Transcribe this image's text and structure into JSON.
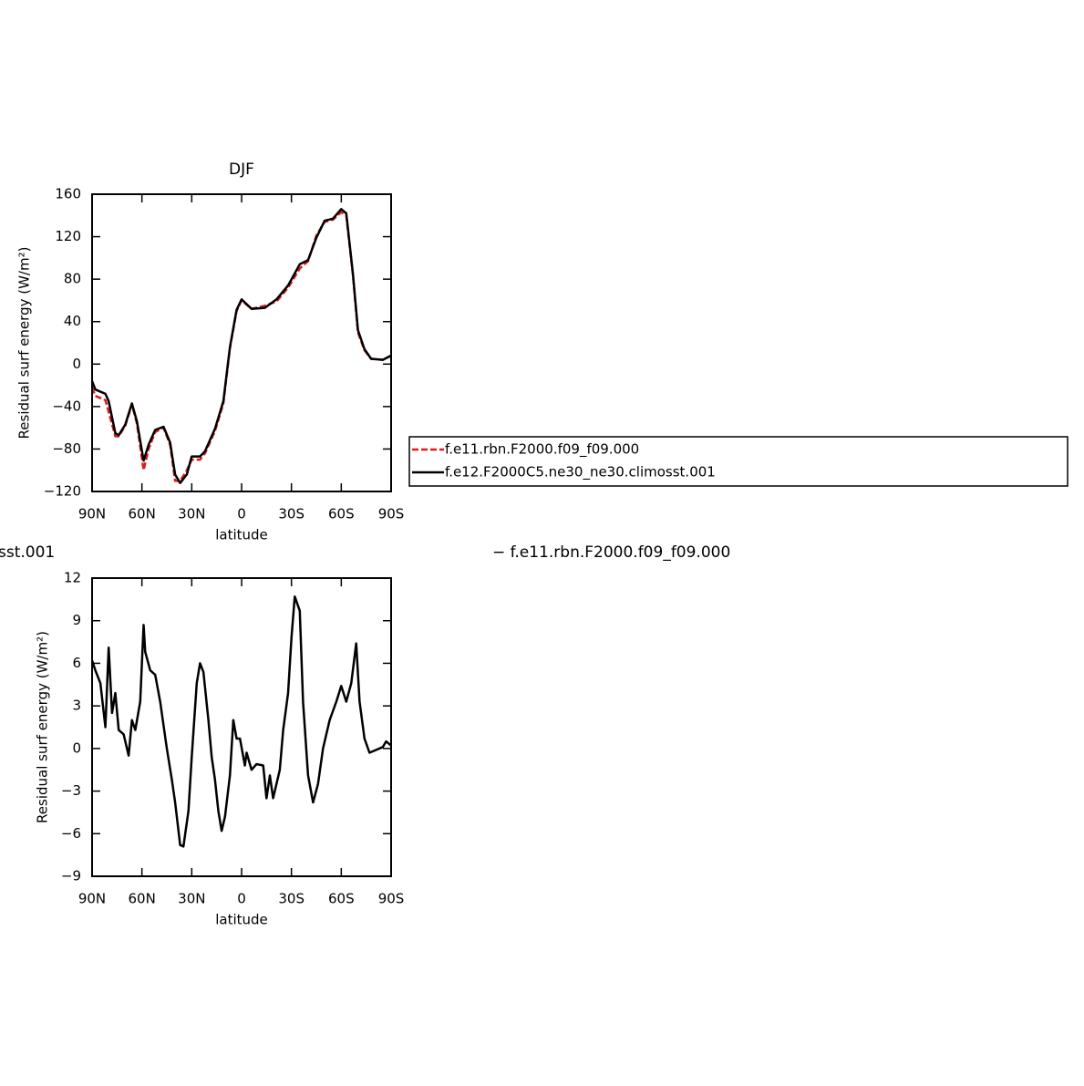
{
  "chart_data": [
    {
      "type": "line",
      "title": "DJF",
      "xlabel": "latitude",
      "ylabel": "Residual surf energy (W/m²)",
      "xlim": [
        90,
        -90
      ],
      "xticks": [
        {
          "value": 90,
          "label": "90N"
        },
        {
          "value": 60,
          "label": "60N"
        },
        {
          "value": 30,
          "label": "30N"
        },
        0,
        {
          "value": -30,
          "label": "30S"
        },
        {
          "value": -60,
          "label": "60S"
        },
        {
          "value": -90,
          "label": "90S"
        }
      ],
      "ylim": [
        -120,
        160
      ],
      "yticks": [
        {
          "value": -120,
          "label": "−120"
        },
        {
          "value": -80,
          "label": "−80"
        },
        {
          "value": -40,
          "label": "−40"
        },
        0,
        40,
        80,
        120,
        160
      ],
      "legend": "right",
      "x": [
        90,
        88,
        82,
        80,
        76,
        74,
        70,
        66,
        63,
        59,
        56,
        52,
        47,
        43,
        40,
        37,
        33,
        30,
        25,
        22,
        16,
        11,
        7,
        3,
        0,
        -6,
        -14,
        -21,
        -28,
        -35,
        -40,
        -45,
        -50,
        -55,
        -60,
        -63,
        -67,
        -70,
        -74,
        -78,
        -85,
        -90
      ],
      "series": [
        {
          "name": "f.e11.rbn.F2000.f09_f09.000",
          "color": "#e31a1c",
          "dashed": true,
          "values": [
            -22,
            -30,
            -34,
            -45,
            -68,
            -68,
            -58,
            -38,
            -56,
            -100,
            -80,
            -64,
            -60,
            -76,
            -110,
            -110,
            -100,
            -90,
            -90,
            -84,
            -63,
            -37,
            15,
            50,
            60,
            52,
            55,
            59,
            72,
            90,
            97,
            121,
            134,
            136,
            143,
            140,
            84,
            30,
            13,
            5,
            4,
            8
          ]
        },
        {
          "name": "f.e12.F2000C5.ne30_ne30.climosst.001",
          "color": "#000000",
          "dashed": false,
          "values": [
            -16,
            -24,
            -28,
            -35,
            -65,
            -67,
            -57,
            -37,
            -54,
            -91,
            -76,
            -62,
            -59,
            -74,
            -104,
            -112,
            -104,
            -87,
            -87,
            -82,
            -61,
            -35,
            16,
            51,
            61,
            52,
            53,
            61,
            74,
            94,
            98,
            119,
            135,
            137,
            146,
            142,
            85,
            32,
            14,
            5,
            4,
            8
          ]
        }
      ]
    },
    {
      "type": "line",
      "xlabel": "latitude",
      "ylabel": "Residual surf energy (W/m²)",
      "annotations": [
        "sst.001",
        "− f.e11.rbn.F2000.f09_f09.000"
      ],
      "xlim": [
        90,
        -90
      ],
      "xticks": [
        {
          "value": 90,
          "label": "90N"
        },
        {
          "value": 60,
          "label": "60N"
        },
        {
          "value": 30,
          "label": "30N"
        },
        0,
        {
          "value": -30,
          "label": "30S"
        },
        {
          "value": -60,
          "label": "60S"
        },
        {
          "value": -90,
          "label": "90S"
        }
      ],
      "ylim": [
        -9,
        12
      ],
      "yticks": [
        {
          "value": -9,
          "label": "−9"
        },
        {
          "value": -6,
          "label": "−6"
        },
        {
          "value": -3,
          "label": "−3"
        },
        0,
        3,
        6,
        9,
        12
      ],
      "x": [
        90,
        88,
        85,
        82,
        80,
        78,
        76,
        74,
        71,
        68,
        66,
        64,
        61,
        59,
        58,
        55,
        52,
        49,
        45,
        42,
        40,
        37,
        35,
        32,
        30,
        27,
        25,
        23,
        20,
        18,
        16,
        14,
        12,
        10,
        7,
        5,
        3,
        1,
        -2,
        -3,
        -6,
        -9,
        -13,
        -15,
        -17,
        -19,
        -23,
        -25,
        -28,
        -30,
        -32,
        -35,
        -37,
        -40,
        -43,
        -46,
        -49,
        -53,
        -57,
        -60,
        -63,
        -66,
        -69,
        -71,
        -74,
        -77,
        -81,
        -85,
        -87,
        -90
      ],
      "series": [
        {
          "color": "#000000",
          "dashed": false,
          "values": [
            6.2,
            5.5,
            4.6,
            1.5,
            7.1,
            2.5,
            3.9,
            1.3,
            1.0,
            -0.5,
            2.0,
            1.3,
            3.3,
            8.7,
            6.8,
            5.5,
            5.2,
            3.3,
            0,
            -2.2,
            -3.8,
            -6.8,
            -6.9,
            -4.4,
            -0.6,
            4.6,
            6.0,
            5.4,
            2.0,
            -0.6,
            -2.2,
            -4.4,
            -5.8,
            -4.8,
            -1.9,
            2.0,
            0.7,
            0.7,
            -1.2,
            -0.3,
            -1.5,
            -1.1,
            -1.2,
            -3.5,
            -1.9,
            -3.5,
            -1.5,
            1.3,
            3.9,
            7.8,
            10.7,
            9.7,
            3.3,
            -1.9,
            -3.8,
            -2.5,
            0,
            2.0,
            3.3,
            4.4,
            3.3,
            4.6,
            7.4,
            3.3,
            0.7,
            -0.3,
            -0.1,
            0.1,
            0.5,
            0.2
          ]
        }
      ]
    }
  ]
}
